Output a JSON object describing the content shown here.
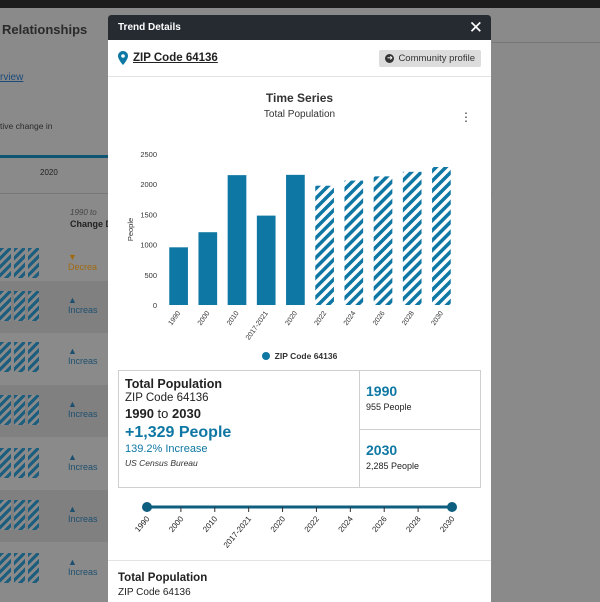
{
  "background": {
    "title": "Relationships",
    "link": "rview",
    "note": "tive change in",
    "year": "2020",
    "col_range": "1990 to",
    "col_header": "Change D",
    "rows": [
      {
        "status": "▼ Decrea",
        "kind": "dec"
      },
      {
        "status": "▲ Increas",
        "kind": "inc"
      },
      {
        "status": "▲ Increas",
        "kind": "inc"
      },
      {
        "status": "▲ Increas",
        "kind": "inc"
      },
      {
        "status": "▲ Increas",
        "kind": "inc"
      },
      {
        "status": "▲ Increas",
        "kind": "inc"
      },
      {
        "status": "▲ Increas",
        "kind": "inc"
      }
    ]
  },
  "modal": {
    "title": "Trend Details",
    "close": "✕",
    "location": "ZIP Code 64136",
    "profile_button": "Community profile",
    "profile_icon": "arrow-right-circle-icon"
  },
  "chart_data": {
    "type": "bar",
    "title": "Time Series",
    "subtitle": "Total Population",
    "ylabel": "People",
    "ylim": [
      0,
      2500
    ],
    "yticks": [
      0,
      500,
      1000,
      1500,
      2000,
      2500
    ],
    "categories": [
      "1990",
      "2000",
      "2010",
      "2017-2021",
      "2020",
      "2022",
      "2024",
      "2026",
      "2028",
      "2030"
    ],
    "series": [
      {
        "name": "ZIP Code 64136",
        "values": [
          955,
          1205,
          2150,
          1480,
          2155,
          1975,
          2060,
          2130,
          2205,
          2285
        ]
      }
    ],
    "projected_from_index": 5,
    "color": "#0e77a3",
    "grid": false,
    "legend": "bottom-center"
  },
  "summary": {
    "heading": "Total Population",
    "place": "ZIP Code 64136",
    "from_year": "1990",
    "to_word": "to",
    "to_year": "2030",
    "change": "+1,329 People",
    "pct": "139.2% Increase",
    "source": "US Census Bureau",
    "start": {
      "year": "1990",
      "value": "955 People"
    },
    "end": {
      "year": "2030",
      "value": "2,285 People"
    }
  },
  "slider": {
    "labels": [
      "1990",
      "2000",
      "2010",
      "2017-2021",
      "2020",
      "2022",
      "2024",
      "2026",
      "2028",
      "2030"
    ],
    "start_index": 0,
    "end_index": 9
  },
  "bottom": {
    "heading": "Total Population",
    "sub": "ZIP Code 64136"
  }
}
